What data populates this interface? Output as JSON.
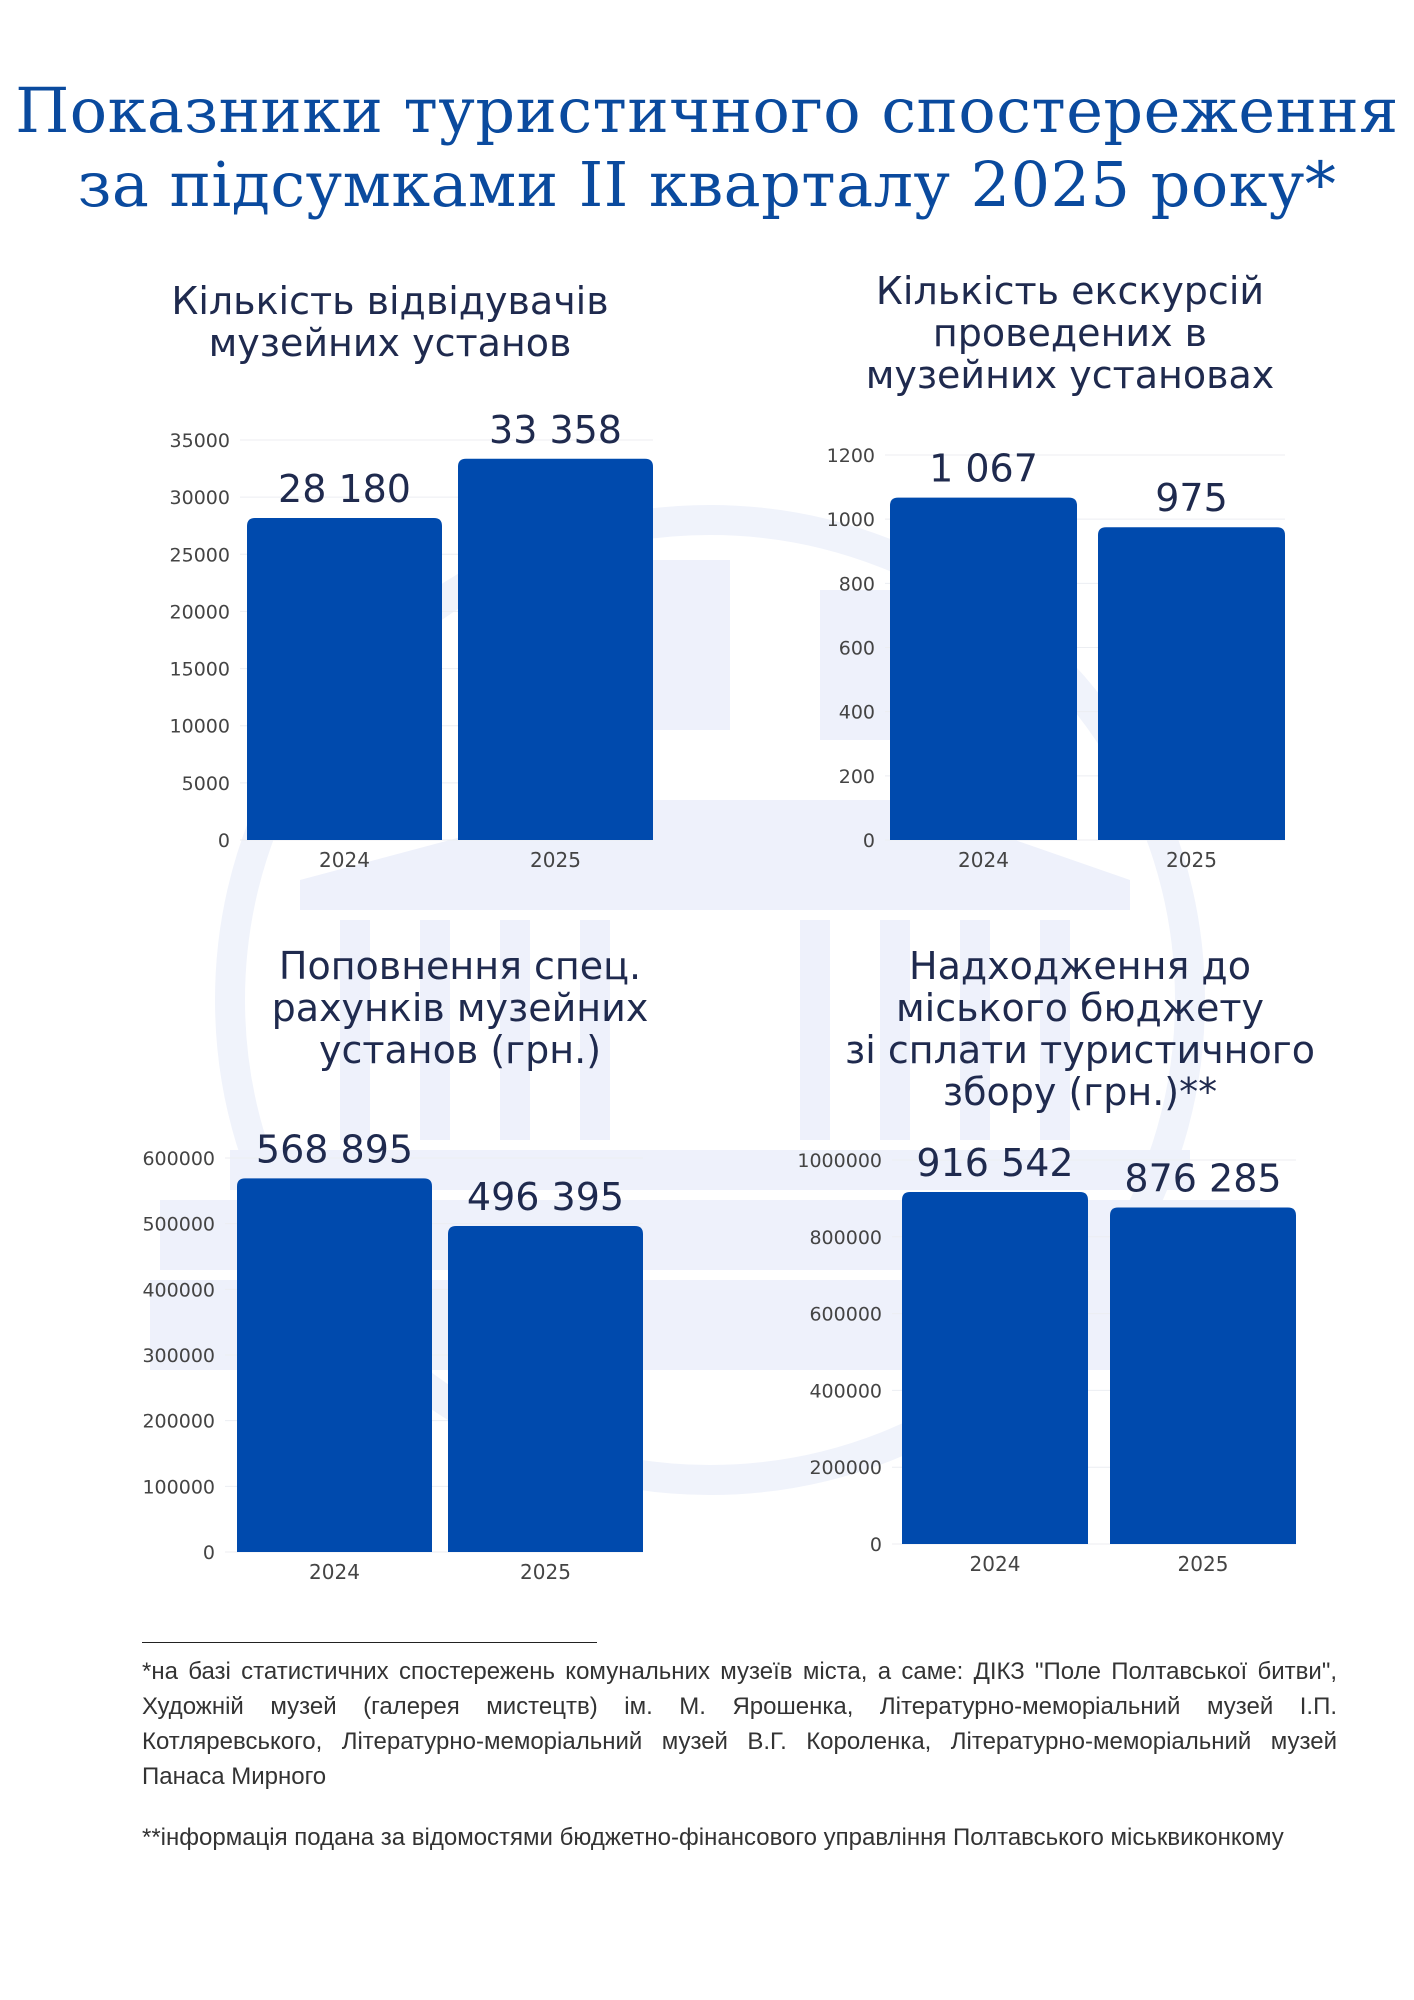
{
  "header": {
    "title_lines": [
      "Показники туристичного спостереження",
      "за підсумками II кварталу 2025 року*"
    ]
  },
  "colors": {
    "title": "#0a4a9e",
    "bar": "#004aad",
    "text": "#1f2a4e",
    "watermark": "#eef1fb"
  },
  "chart_data": [
    {
      "type": "bar",
      "title_lines": [
        "Кількість відвідувачів",
        "музейних установ"
      ],
      "categories": [
        "2024",
        "2025"
      ],
      "values": [
        28180,
        33358
      ],
      "value_labels": [
        "28 180",
        "33 358"
      ],
      "yticks": [
        "0",
        "5000",
        "10000",
        "15000",
        "20000",
        "25000",
        "30000",
        "35000"
      ],
      "ylim": [
        0,
        35000
      ]
    },
    {
      "type": "bar",
      "title_lines": [
        "Кількість екскурсій",
        "проведених в",
        "музейних установах"
      ],
      "categories": [
        "2024",
        "2025"
      ],
      "values": [
        1067,
        975
      ],
      "value_labels": [
        "1 067",
        "975"
      ],
      "yticks": [
        "0",
        "200",
        "400",
        "600",
        "800",
        "1000",
        "1200"
      ],
      "ylim": [
        0,
        1200
      ]
    },
    {
      "type": "bar",
      "title_lines": [
        "Поповнення спец.",
        "рахунків музейних",
        "установ (грн.)"
      ],
      "categories": [
        "2024",
        "2025"
      ],
      "values": [
        568895,
        496395
      ],
      "value_labels": [
        "568 895",
        "496 395"
      ],
      "yticks": [
        "0",
        "100000",
        "200000",
        "300000",
        "400000",
        "500000",
        "600000"
      ],
      "ylim": [
        0,
        600000
      ]
    },
    {
      "type": "bar",
      "title_lines": [
        "Надходження до",
        "міського бюджету",
        "зі сплати туристичного",
        "збору (грн.)**"
      ],
      "categories": [
        "2024",
        "2025"
      ],
      "values": [
        916542,
        876285
      ],
      "value_labels": [
        "916 542",
        "876 285"
      ],
      "yticks": [
        "0",
        "200000",
        "400000",
        "600000",
        "800000",
        "1000000"
      ],
      "ylim": [
        0,
        1000000
      ]
    }
  ],
  "footnotes": {
    "note1": "*на базі статистичних спостережень комунальних музеїв міста, а саме: ДІКЗ \"Поле Полтавської битви\", Художній музей (галерея мистецтв) ім. М. Ярошенка, Літературно-меморіальний музей І.П. Котляревського, Літературно-меморіальний музей В.Г. Короленка, Літературно-меморіальний музей Панаса Мирного",
    "note2": "**інформація подана за відомостями бюджетно-фінансового управління Полтавського міськвиконкому"
  }
}
